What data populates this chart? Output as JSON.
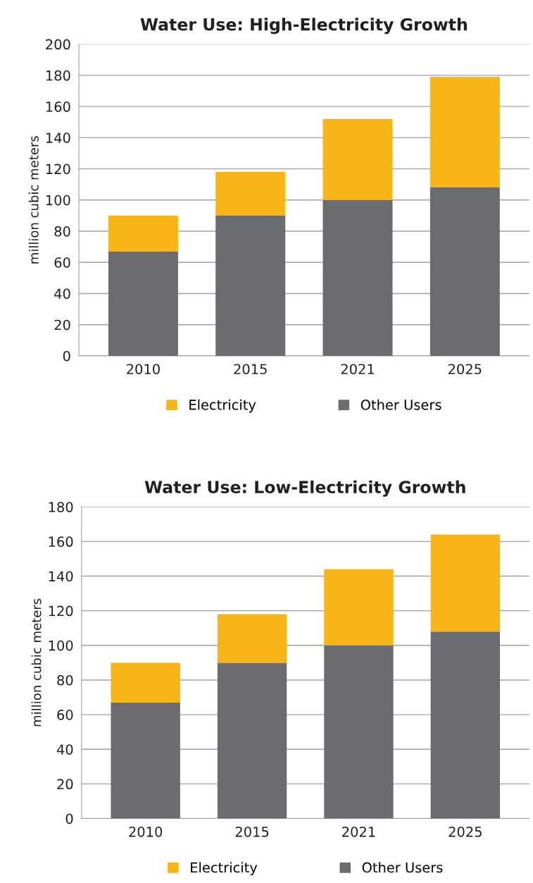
{
  "chart_data": [
    {
      "type": "bar",
      "title": "Water Use: High-Electricity Growth",
      "ylabel": "million cubic meters",
      "categories": [
        "2010",
        "2015",
        "2021",
        "2025"
      ],
      "stacked": true,
      "series": [
        {
          "name": "Other Users",
          "color": "#6b6c70",
          "values": [
            67,
            90,
            100,
            108
          ]
        },
        {
          "name": "Electricity",
          "color": "#f9b418",
          "values": [
            23,
            28,
            52,
            71
          ]
        }
      ],
      "ylim": [
        0,
        200
      ],
      "yticks": [
        0,
        20,
        40,
        60,
        80,
        100,
        120,
        140,
        160,
        180,
        200
      ],
      "grid": "y",
      "legend": "bottom"
    },
    {
      "type": "bar",
      "title": "Water Use: Low-Electricity Growth",
      "ylabel": "million cubic meters",
      "categories": [
        "2010",
        "2015",
        "2021",
        "2025"
      ],
      "stacked": true,
      "series": [
        {
          "name": "Other Users",
          "color": "#6b6c70",
          "values": [
            67,
            90,
            100,
            108
          ]
        },
        {
          "name": "Electricity",
          "color": "#f9b418",
          "values": [
            23,
            28,
            44,
            56
          ]
        }
      ],
      "ylim": [
        0,
        180
      ],
      "yticks": [
        0,
        20,
        40,
        60,
        80,
        100,
        120,
        140,
        160,
        180
      ],
      "grid": "y",
      "legend": "bottom"
    }
  ]
}
